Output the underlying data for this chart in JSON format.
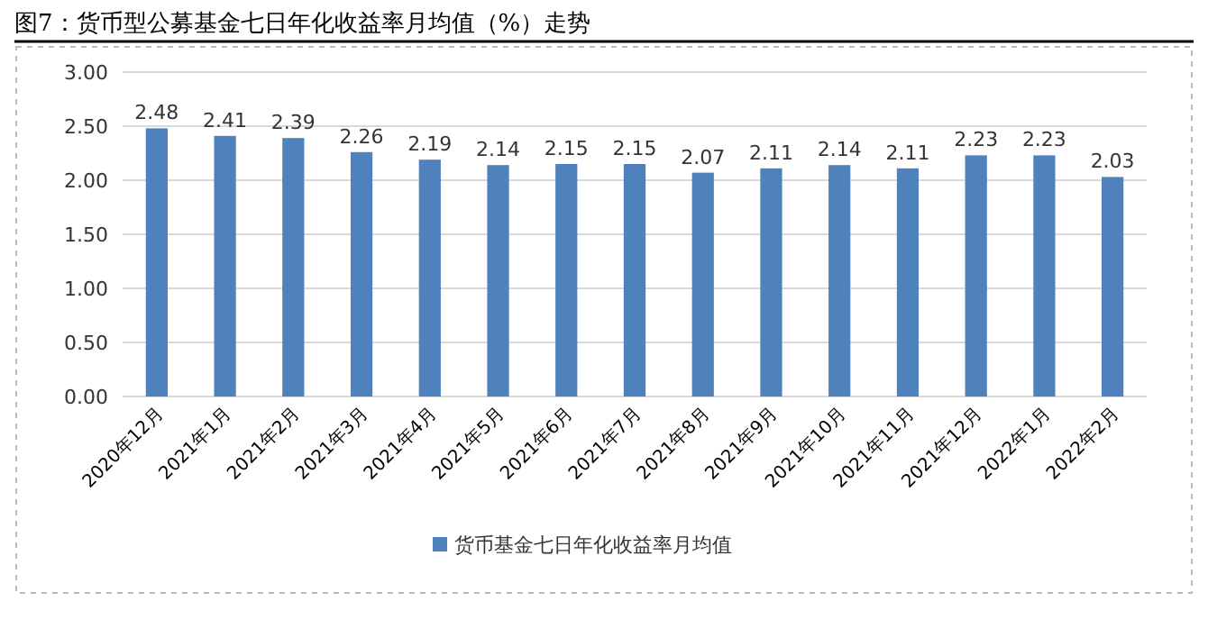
{
  "chart_data": {
    "type": "bar",
    "title": "图7：货币型公募基金七日年化收益率月均值（%）走势",
    "categories": [
      "2020年12月",
      "2021年1月",
      "2021年2月",
      "2021年3月",
      "2021年4月",
      "2021年5月",
      "2021年6月",
      "2021年7月",
      "2021年8月",
      "2021年9月",
      "2021年10月",
      "2021年11月",
      "2021年12月",
      "2022年1月",
      "2022年2月"
    ],
    "series": [
      {
        "name": "货币基金七日年化收益率月均值",
        "color": "#4f81bd",
        "values": [
          2.48,
          2.41,
          2.39,
          2.26,
          2.19,
          2.14,
          2.15,
          2.15,
          2.07,
          2.11,
          2.14,
          2.11,
          2.23,
          2.23,
          2.03
        ]
      }
    ],
    "ylim": [
      0,
      3
    ],
    "yticks": [
      {
        "value": 0,
        "label": "0.00"
      },
      {
        "value": 0.5,
        "label": "0.50"
      },
      {
        "value": 1,
        "label": "1.00"
      },
      {
        "value": 1.5,
        "label": "1.50"
      },
      {
        "value": 2,
        "label": "2.00"
      },
      {
        "value": 2.5,
        "label": "2.50"
      },
      {
        "value": 3,
        "label": "3.00"
      }
    ],
    "grid": "y",
    "legend": "bottom",
    "data_labels": true
  }
}
